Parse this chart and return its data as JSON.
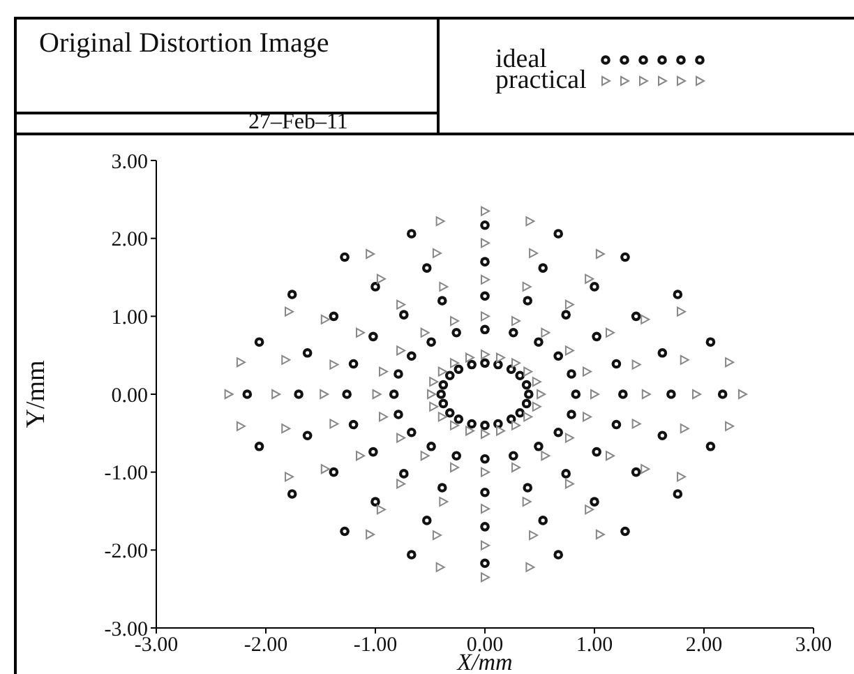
{
  "chart_data": {
    "type": "scatter",
    "title": "Original Distortion Image",
    "annotations": [
      "27–Feb–11"
    ],
    "xlabel": "X/mm",
    "ylabel": "Y/mm",
    "legend": "top right",
    "grid": false,
    "xlim": [
      -3,
      3
    ],
    "ylim": [
      -3,
      3
    ],
    "xticks": [
      {
        "value": -3,
        "label": "-3.00"
      },
      {
        "value": -2,
        "label": "-2.00"
      },
      {
        "value": -1,
        "label": "-1.00"
      },
      {
        "value": 0,
        "label": "0.00"
      },
      {
        "value": 1,
        "label": "1.00"
      },
      {
        "value": 2,
        "label": "2.00"
      },
      {
        "value": 3,
        "label": "3.00"
      }
    ],
    "yticks": [
      {
        "value": -3,
        "label": "-3.00"
      },
      {
        "value": -2,
        "label": "-2.00"
      },
      {
        "value": -1,
        "label": "-1.00"
      },
      {
        "value": 0,
        "label": "0.00"
      },
      {
        "value": 1,
        "label": "1.00"
      },
      {
        "value": 2,
        "label": "2.00"
      },
      {
        "value": 3,
        "label": "3.00"
      }
    ],
    "series": [
      {
        "name": "ideal",
        "color": "#111111",
        "marker": "circle",
        "x": [
          -2.17,
          -1.7,
          -1.26,
          -0.83,
          -0.4,
          0.4,
          0.83,
          1.26,
          1.7,
          2.17,
          0,
          0,
          0,
          0,
          0,
          0,
          0,
          0,
          0,
          0,
          0.38,
          0.32,
          0.24,
          0.12,
          0.79,
          0.67,
          0.49,
          0.26,
          1.2,
          1.02,
          0.74,
          0.39,
          1.62,
          1.38,
          1,
          0.53,
          2.06,
          1.76,
          1.28,
          0.67,
          -0.38,
          -0.32,
          -0.24,
          -0.12,
          -0.79,
          -0.67,
          -0.49,
          -0.26,
          -1.2,
          -1.02,
          -0.74,
          -0.39,
          -1.62,
          -1.38,
          -1,
          -0.53,
          -2.06,
          -1.76,
          -1.28,
          -0.67,
          -0.38,
          -0.32,
          -0.24,
          -0.12,
          -0.79,
          -0.67,
          -0.49,
          -0.26,
          -1.2,
          -1.02,
          -0.74,
          -0.39,
          -1.62,
          -1.38,
          -1,
          -0.53,
          -2.06,
          -1.76,
          -1.28,
          -0.67,
          0.38,
          0.32,
          0.24,
          0.12,
          0.79,
          0.67,
          0.49,
          0.26,
          1.2,
          1.02,
          0.74,
          0.39,
          1.62,
          1.38,
          1,
          0.53,
          2.06,
          1.76,
          1.28,
          0.67
        ],
        "values": [
          0,
          0,
          0,
          0,
          0,
          0,
          0,
          0,
          0,
          0,
          -2.17,
          -1.7,
          -1.26,
          -0.83,
          -0.4,
          0.4,
          0.83,
          1.26,
          1.7,
          2.17,
          0.12,
          0.24,
          0.32,
          0.38,
          0.26,
          0.49,
          0.67,
          0.79,
          0.39,
          0.74,
          1.02,
          1.2,
          0.53,
          1,
          1.38,
          1.62,
          0.67,
          1.28,
          1.76,
          2.06,
          0.12,
          0.24,
          0.32,
          0.38,
          0.26,
          0.49,
          0.67,
          0.79,
          0.39,
          0.74,
          1.02,
          1.2,
          0.53,
          1,
          1.38,
          1.62,
          0.67,
          1.28,
          1.76,
          2.06,
          -0.12,
          -0.24,
          -0.32,
          -0.38,
          -0.26,
          -0.49,
          -0.67,
          -0.79,
          -0.39,
          -0.74,
          -1.02,
          -1.2,
          -0.53,
          -1,
          -1.38,
          -1.62,
          -0.67,
          -1.28,
          -1.76,
          -2.06,
          -0.12,
          -0.24,
          -0.32,
          -0.38,
          -0.26,
          -0.49,
          -0.67,
          -0.79,
          -0.39,
          -0.74,
          -1.02,
          -1.2,
          -0.53,
          -1,
          -1.38,
          -1.62,
          -0.67,
          -1.28,
          -1.76,
          -2.06
        ]
      },
      {
        "name": "practical",
        "color": "#888888",
        "marker": "triangle",
        "x": [
          -2.34,
          -1.91,
          -1.47,
          -0.99,
          -0.49,
          0.51,
          1,
          1.47,
          1.93,
          2.35,
          0,
          0,
          0,
          0,
          0,
          0,
          0,
          0,
          0,
          0,
          -0.41,
          -1.05,
          -0.44,
          -0.95,
          -0.38,
          -1.79,
          -1.46,
          -0.77,
          -0.28,
          -1.14,
          -0.55,
          -0.77,
          -0.14,
          -0.28,
          -0.39,
          -0.47,
          -2.23,
          -1.82,
          -1.38,
          -0.93,
          0.41,
          1.05,
          0.44,
          0.95,
          0.38,
          1.79,
          1.46,
          0.77,
          0.28,
          1.14,
          0.55,
          0.77,
          0.14,
          0.28,
          0.39,
          0.47,
          2.23,
          1.82,
          1.38,
          0.93,
          -0.41,
          -1.05,
          -0.44,
          -0.95,
          -0.38,
          -1.79,
          -1.46,
          -0.77,
          -0.28,
          -1.14,
          -0.55,
          -0.77,
          -0.14,
          -0.28,
          -0.39,
          -0.47,
          -2.23,
          -1.82,
          -1.38,
          -0.93,
          0.41,
          1.05,
          0.44,
          0.95,
          0.38,
          1.79,
          1.46,
          0.77,
          0.28,
          1.14,
          0.55,
          0.77,
          0.14,
          0.28,
          0.39,
          0.47,
          2.23,
          1.82,
          1.38,
          0.93
        ],
        "values": [
          0,
          0,
          0,
          0,
          0,
          0,
          0,
          0,
          0,
          0,
          -2.35,
          -1.94,
          -1.47,
          -1,
          -0.51,
          0.51,
          1,
          1.47,
          1.94,
          2.35,
          2.22,
          1.8,
          1.81,
          1.48,
          1.38,
          1.06,
          0.96,
          1.15,
          0.94,
          0.79,
          0.79,
          0.56,
          0.47,
          0.4,
          0.29,
          0.16,
          0.41,
          0.44,
          0.38,
          0.29,
          2.22,
          1.8,
          1.81,
          1.48,
          1.38,
          1.06,
          0.96,
          1.15,
          0.94,
          0.79,
          0.79,
          0.56,
          0.47,
          0.4,
          0.29,
          0.16,
          0.41,
          0.44,
          0.38,
          0.29,
          -2.22,
          -1.8,
          -1.81,
          -1.48,
          -1.38,
          -1.06,
          -0.96,
          -1.15,
          -0.94,
          -0.79,
          -0.79,
          -0.56,
          -0.47,
          -0.4,
          -0.29,
          -0.16,
          -0.41,
          -0.44,
          -0.38,
          -0.29,
          -2.22,
          -1.8,
          -1.81,
          -1.48,
          -1.38,
          -1.06,
          -0.96,
          -1.15,
          -0.94,
          -0.79,
          -0.79,
          -0.56,
          -0.47,
          -0.4,
          -0.29,
          -0.16,
          -0.41,
          -0.44,
          -0.38,
          -0.29
        ]
      }
    ]
  }
}
